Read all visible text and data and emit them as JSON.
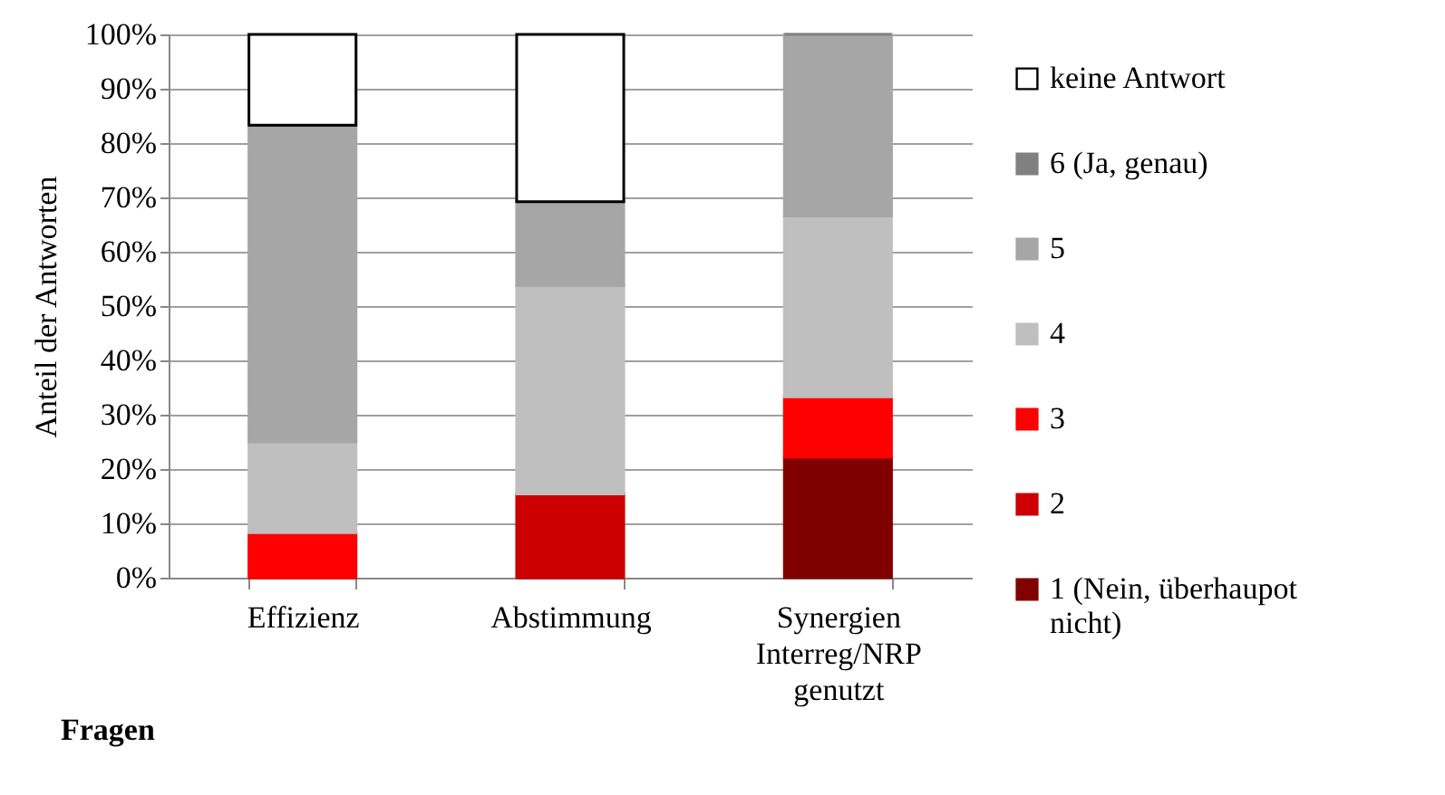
{
  "chart_data": {
    "type": "bar",
    "stacked": true,
    "xlabel": "Fragen",
    "ylabel": "Anteil der Antworten",
    "categories": [
      "Effizienz",
      "Abstimmung",
      "Synergien Interreg/NRP genutzt"
    ],
    "series": [
      {
        "name": "1 (Nein, überhaupot nicht)",
        "color": "#800000",
        "values": [
          0,
          0,
          22.2
        ]
      },
      {
        "name": "2",
        "color": "#cc0000",
        "values": [
          0,
          15.4,
          0
        ]
      },
      {
        "name": "3",
        "color": "#ff0000",
        "values": [
          8.3,
          0,
          11.1
        ]
      },
      {
        "name": "4",
        "color": "#bfbfbf",
        "values": [
          16.7,
          38.4,
          33.3
        ]
      },
      {
        "name": "5",
        "color": "#a6a6a6",
        "values": [
          58.3,
          15.4,
          33.4
        ]
      },
      {
        "name": "6 (Ja, genau)",
        "color": "#808080",
        "values": [
          0,
          0,
          0
        ]
      },
      {
        "name": "keine Antwort",
        "color": "#ffffff",
        "values": [
          16.7,
          30.8,
          null
        ]
      }
    ],
    "ylim": [
      0,
      100
    ],
    "yticks": [
      {
        "value": 0,
        "label": "0%"
      },
      {
        "value": 10,
        "label": "10%"
      },
      {
        "value": 20,
        "label": "20%"
      },
      {
        "value": 30,
        "label": "30%"
      },
      {
        "value": 40,
        "label": "40%"
      },
      {
        "value": 50,
        "label": "50%"
      },
      {
        "value": 60,
        "label": "60%"
      },
      {
        "value": 70,
        "label": "70%"
      },
      {
        "value": 80,
        "label": "80%"
      },
      {
        "value": 90,
        "label": "90%"
      },
      {
        "value": 100,
        "label": "100%"
      }
    ],
    "grid": "y",
    "legend": "right"
  }
}
